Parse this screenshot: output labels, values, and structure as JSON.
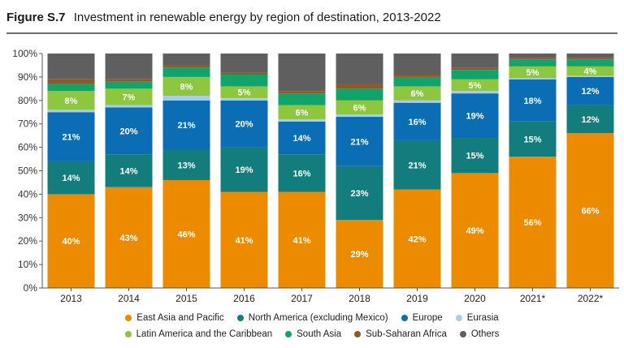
{
  "figure": {
    "number": "Figure S.7",
    "caption": "Investment in renewable energy by region of destination, 2013-2022"
  },
  "chart_data": {
    "type": "bar",
    "stacked": true,
    "categories": [
      "2013",
      "2014",
      "2015",
      "2016",
      "2017",
      "2018",
      "2019",
      "2020",
      "2021*",
      "2022*"
    ],
    "ylim": [
      0,
      100
    ],
    "yticks": [
      "0%",
      "10%",
      "20%",
      "30%",
      "40%",
      "50%",
      "60%",
      "70%",
      "80%",
      "90%",
      "100%"
    ],
    "grid": false,
    "legend_position": "bottom",
    "series": [
      {
        "name": "East Asia and Pacific",
        "color": "#ED8B00",
        "values": [
          40,
          43,
          46,
          41,
          41,
          29,
          42,
          49,
          56,
          66
        ],
        "labels": [
          "40%",
          "43%",
          "46%",
          "41%",
          "41%",
          "29%",
          "42%",
          "49%",
          "56%",
          "66%"
        ]
      },
      {
        "name": "North America (excluding Mexico)",
        "color": "#137D7E",
        "values": [
          14,
          14,
          13,
          19,
          16,
          23,
          21,
          15,
          15,
          12
        ],
        "labels": [
          "14%",
          "14%",
          "13%",
          "19%",
          "16%",
          "23%",
          "21%",
          "15%",
          "15%",
          "12%"
        ]
      },
      {
        "name": "Europe",
        "color": "#0B6EB4",
        "values": [
          21,
          20,
          21,
          20,
          14,
          21,
          16,
          19,
          18,
          12
        ],
        "labels": [
          "21%",
          "20%",
          "21%",
          "20%",
          "14%",
          "21%",
          "16%",
          "19%",
          "18%",
          "12%"
        ]
      },
      {
        "name": "Eurasia",
        "color": "#A9CCEB",
        "values": [
          1,
          1,
          2,
          1,
          1,
          1,
          1,
          1,
          0.5,
          0.5
        ],
        "labels": [
          "",
          "",
          "",
          "",
          "",
          "",
          "",
          "",
          "",
          ""
        ]
      },
      {
        "name": "Latin America and the Caribbean",
        "color": "#8DC63F",
        "values": [
          8,
          7,
          8,
          5,
          6,
          6,
          6,
          5,
          5,
          4
        ],
        "labels": [
          "8%",
          "7%",
          "8%",
          "5%",
          "6%",
          "6%",
          "6%",
          "5%",
          "5%",
          "4%"
        ]
      },
      {
        "name": "South Asia",
        "color": "#12A36B",
        "values": [
          3,
          3,
          4,
          5,
          5,
          5,
          4,
          4,
          3,
          3
        ],
        "labels": [
          "",
          "",
          "",
          "",
          "",
          "",
          "",
          "",
          "",
          ""
        ]
      },
      {
        "name": "Sub-Saharan Africa",
        "color": "#8B5A2B",
        "values": [
          2,
          1,
          1,
          1,
          1,
          2,
          1,
          1,
          0.5,
          0.5
        ],
        "labels": [
          "",
          "",
          "",
          "",
          "",
          "",
          "",
          "",
          "",
          ""
        ]
      },
      {
        "name": "Others",
        "color": "#5F5F5F",
        "values": [
          11,
          11,
          5,
          8,
          16,
          13,
          9,
          6,
          2,
          2
        ],
        "labels": [
          "",
          "",
          "",
          "",
          "",
          "",
          "",
          "",
          "",
          ""
        ]
      }
    ]
  }
}
